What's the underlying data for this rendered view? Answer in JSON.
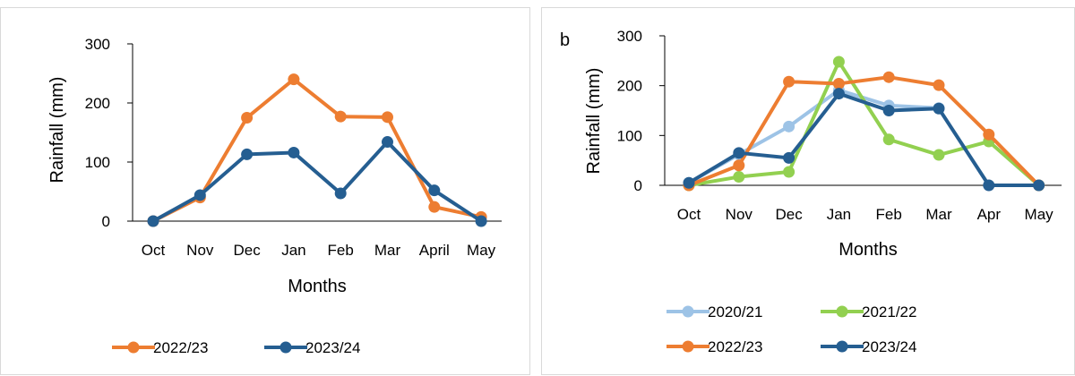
{
  "chart_data": [
    {
      "type": "line",
      "panel_label": "",
      "categories": [
        "Oct",
        "Nov",
        "Dec",
        "Jan",
        "Feb",
        "Mar",
        "April",
        "May"
      ],
      "series": [
        {
          "name": "2022/23",
          "color": "#ed7d31",
          "values": [
            0,
            40,
            175,
            240,
            177,
            176,
            24,
            7
          ]
        },
        {
          "name": "2023/24",
          "color": "#255e91",
          "values": [
            0,
            44,
            113,
            116,
            47,
            134,
            52,
            0
          ]
        }
      ],
      "xlabel": "Months",
      "ylabel": "Rainfall (mm)",
      "yticks": [
        0,
        100,
        200,
        300
      ],
      "ylim": [
        0,
        300
      ],
      "grid": false,
      "legend_position": "bottom"
    },
    {
      "type": "line",
      "panel_label": "b",
      "categories": [
        "Oct",
        "Nov",
        "Dec",
        "Jan",
        "Feb",
        "Mar",
        "Apr",
        "May"
      ],
      "series": [
        {
          "name": "2020/21",
          "color": "#9dc3e6",
          "values": [
            5,
            62,
            118,
            191,
            160,
            155,
            null,
            null
          ]
        },
        {
          "name": "2021/22",
          "color": "#92d050",
          "values": [
            0,
            17,
            27,
            248,
            92,
            61,
            88,
            0
          ]
        },
        {
          "name": "2022/23",
          "color": "#ed7d31",
          "values": [
            0,
            40,
            208,
            204,
            217,
            201,
            102,
            0
          ]
        },
        {
          "name": "2023/24",
          "color": "#255e91",
          "values": [
            5,
            65,
            55,
            184,
            150,
            154,
            0,
            0
          ]
        }
      ],
      "xlabel": "Months",
      "ylabel": "Rainfall (mm)",
      "yticks": [
        0,
        100,
        200,
        300
      ],
      "ylim": [
        0,
        300
      ],
      "grid": false,
      "legend_position": "bottom"
    }
  ]
}
